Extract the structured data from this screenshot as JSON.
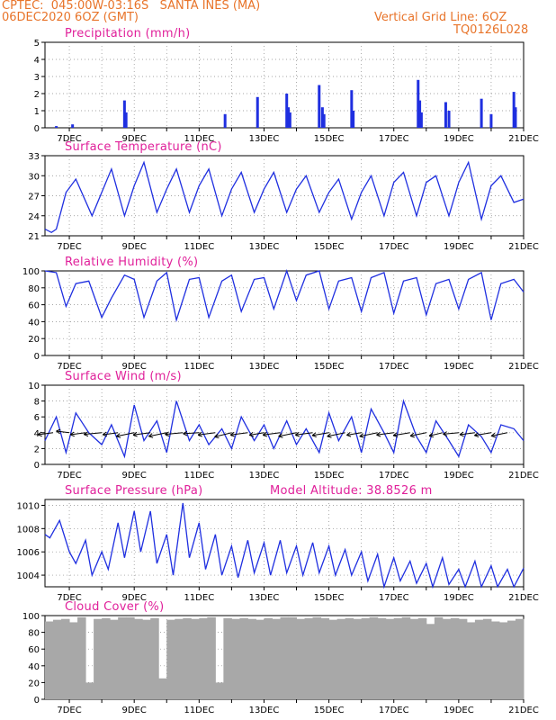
{
  "header": {
    "line1": "CPTEC:  045:00W-03:16S   SANTA INES (MA)",
    "line2": "06DEC2020 6OZ (GMT)",
    "grid_note": "Vertical Grid Line: 6OZ",
    "code": "TQ0126L028"
  },
  "x_ticks": [
    "7DEC",
    "9DEC",
    "11DEC",
    "13DEC",
    "15DEC",
    "17DEC",
    "19DEC",
    "21DEC"
  ],
  "model_altitude": "Model Altitude: 38.8526 m",
  "colors": {
    "series": "#1f2fe0",
    "title": "#e0209a",
    "header": "#e8742a",
    "cloud": "#a8a8a8",
    "wind_arrow": "#000000"
  },
  "chart_data": [
    {
      "type": "bar",
      "title": "Precipitation (mm/h)",
      "ylim": [
        0,
        5
      ],
      "yticks": [
        "0",
        "1",
        "2",
        "3",
        "4",
        "5"
      ],
      "x_range_days": [
        6.25,
        21.0
      ],
      "x": [
        6.6,
        7.1,
        8.7,
        8.75,
        11.8,
        12.8,
        13.7,
        13.75,
        13.8,
        14.7,
        14.8,
        14.85,
        15.7,
        15.75,
        17.75,
        17.8,
        17.85,
        18.6,
        18.7,
        19.7,
        20.0,
        20.7,
        20.75
      ],
      "values": [
        0.1,
        0.2,
        1.6,
        0.9,
        0.8,
        1.8,
        2.0,
        1.2,
        0.9,
        2.5,
        1.2,
        0.8,
        2.2,
        1.0,
        2.8,
        1.6,
        0.9,
        1.5,
        1.0,
        1.7,
        0.8,
        2.1,
        1.2
      ]
    },
    {
      "type": "line",
      "title": "Surface Temperature (nC)",
      "ylim": [
        21,
        33
      ],
      "yticks": [
        "21",
        "24",
        "27",
        "30",
        "33"
      ],
      "x_range_days": [
        6.25,
        21.0
      ],
      "x": [
        6.25,
        6.45,
        6.6,
        6.9,
        7.2,
        7.7,
        8.0,
        8.3,
        8.7,
        9.0,
        9.3,
        9.7,
        10.0,
        10.3,
        10.7,
        11.0,
        11.3,
        11.7,
        12.0,
        12.3,
        12.7,
        13.0,
        13.3,
        13.7,
        14.0,
        14.3,
        14.7,
        15.0,
        15.3,
        15.7,
        16.0,
        16.3,
        16.7,
        17.0,
        17.3,
        17.7,
        18.0,
        18.3,
        18.7,
        19.0,
        19.3,
        19.7,
        20.0,
        20.3,
        20.7,
        21.0
      ],
      "values": [
        22.0,
        21.5,
        22.0,
        27.5,
        29.5,
        24.0,
        27.5,
        31.0,
        24.0,
        28.5,
        32.0,
        24.5,
        28.0,
        31.0,
        24.5,
        28.5,
        31.0,
        24.0,
        28.0,
        30.5,
        24.5,
        28.0,
        30.5,
        24.5,
        28.0,
        30.0,
        24.5,
        27.5,
        29.5,
        23.5,
        27.5,
        30.0,
        24.0,
        29.0,
        30.5,
        24.0,
        29.0,
        30.0,
        24.0,
        29.0,
        32.0,
        23.5,
        28.5,
        30.0,
        26.0,
        26.5
      ]
    },
    {
      "type": "line",
      "title": "Relative Humidity (%)",
      "ylim": [
        0,
        100
      ],
      "yticks": [
        "0",
        "20",
        "40",
        "60",
        "80",
        "100"
      ],
      "x_range_days": [
        6.25,
        21.0
      ],
      "x": [
        6.25,
        6.6,
        6.9,
        7.2,
        7.6,
        8.0,
        8.3,
        8.7,
        9.0,
        9.3,
        9.7,
        10.0,
        10.3,
        10.7,
        11.0,
        11.3,
        11.7,
        12.0,
        12.3,
        12.7,
        13.0,
        13.3,
        13.7,
        14.0,
        14.3,
        14.7,
        15.0,
        15.3,
        15.7,
        16.0,
        16.3,
        16.7,
        17.0,
        17.3,
        17.7,
        18.0,
        18.3,
        18.7,
        19.0,
        19.3,
        19.7,
        20.0,
        20.3,
        20.7,
        21.0
      ],
      "values": [
        100,
        98,
        58,
        85,
        88,
        45,
        68,
        95,
        90,
        45,
        88,
        98,
        42,
        90,
        92,
        45,
        88,
        95,
        52,
        90,
        92,
        55,
        100,
        65,
        95,
        100,
        55,
        88,
        92,
        52,
        92,
        98,
        50,
        88,
        92,
        48,
        85,
        90,
        55,
        90,
        98,
        42,
        85,
        90,
        75
      ]
    },
    {
      "type": "line",
      "title": "Surface Wind (m/s)",
      "ylim": [
        0,
        10
      ],
      "yticks": [
        "0",
        "2",
        "4",
        "6",
        "8",
        "10"
      ],
      "x_range_days": [
        6.25,
        21.0
      ],
      "x": [
        6.25,
        6.6,
        6.9,
        7.2,
        7.6,
        8.0,
        8.3,
        8.7,
        9.0,
        9.3,
        9.7,
        10.0,
        10.3,
        10.7,
        11.0,
        11.3,
        11.7,
        12.0,
        12.3,
        12.7,
        13.0,
        13.3,
        13.7,
        14.0,
        14.3,
        14.7,
        15.0,
        15.3,
        15.7,
        16.0,
        16.3,
        16.7,
        17.0,
        17.3,
        17.7,
        18.0,
        18.3,
        18.7,
        19.0,
        19.3,
        19.7,
        20.0,
        20.3,
        20.7,
        21.0
      ],
      "values": [
        3.0,
        6.0,
        1.5,
        6.5,
        4.0,
        2.5,
        5.0,
        1.0,
        7.5,
        3.0,
        5.5,
        1.5,
        8.0,
        3.0,
        5.0,
        2.5,
        4.5,
        2.0,
        6.0,
        3.0,
        5.0,
        2.0,
        5.5,
        2.5,
        4.5,
        1.5,
        6.5,
        3.0,
        6.0,
        1.5,
        7.0,
        4.0,
        1.5,
        8.0,
        3.5,
        1.5,
        5.5,
        3.0,
        1.0,
        5.0,
        3.5,
        1.5,
        5.0,
        4.5,
        3.0
      ]
    },
    {
      "type": "line",
      "title": "Surface Pressure (hPa)",
      "ylim": [
        1003,
        1010.5
      ],
      "yticks": [
        "1004",
        "1006",
        "1008",
        "1010"
      ],
      "x_range_days": [
        6.25,
        21.0
      ],
      "x": [
        6.25,
        6.4,
        6.7,
        7.0,
        7.2,
        7.5,
        7.7,
        8.0,
        8.2,
        8.5,
        8.7,
        9.0,
        9.2,
        9.5,
        9.7,
        10.0,
        10.2,
        10.5,
        10.7,
        11.0,
        11.2,
        11.5,
        11.7,
        12.0,
        12.2,
        12.5,
        12.7,
        13.0,
        13.2,
        13.5,
        13.7,
        14.0,
        14.2,
        14.5,
        14.7,
        15.0,
        15.2,
        15.5,
        15.7,
        16.0,
        16.2,
        16.5,
        16.7,
        17.0,
        17.2,
        17.5,
        17.7,
        18.0,
        18.2,
        18.5,
        18.7,
        19.0,
        19.2,
        19.5,
        19.7,
        20.0,
        20.2,
        20.5,
        20.7,
        21.0
      ],
      "values": [
        1007.5,
        1007.2,
        1008.7,
        1006.0,
        1005.0,
        1007.0,
        1004.0,
        1006.0,
        1004.5,
        1008.5,
        1005.5,
        1009.5,
        1006.0,
        1009.5,
        1005.0,
        1007.5,
        1004.0,
        1010.2,
        1005.5,
        1008.5,
        1004.5,
        1007.5,
        1004.0,
        1006.5,
        1003.8,
        1007.0,
        1004.2,
        1006.8,
        1004.0,
        1007.0,
        1004.2,
        1006.5,
        1004.0,
        1006.8,
        1004.2,
        1006.5,
        1004.0,
        1006.2,
        1004.0,
        1006.0,
        1003.5,
        1005.8,
        1003.0,
        1005.5,
        1003.5,
        1005.2,
        1003.3,
        1005.0,
        1003.0,
        1005.5,
        1003.2,
        1004.5,
        1003.0,
        1005.2,
        1003.0,
        1004.8,
        1003.0,
        1004.5,
        1003.0,
        1004.6
      ]
    },
    {
      "type": "bar",
      "title": "Cloud Cover (%)",
      "ylim": [
        0,
        100
      ],
      "yticks": [
        "0",
        "20",
        "40",
        "60",
        "80",
        "100"
      ],
      "x_range_days": [
        6.25,
        21.0
      ],
      "x": [
        6.25,
        6.5,
        6.75,
        7.0,
        7.25,
        7.5,
        7.75,
        8.0,
        8.25,
        8.5,
        8.75,
        9.0,
        9.25,
        9.5,
        9.75,
        10.0,
        10.25,
        10.5,
        10.75,
        11.0,
        11.25,
        11.5,
        11.75,
        12.0,
        12.25,
        12.5,
        12.75,
        13.0,
        13.25,
        13.5,
        13.75,
        14.0,
        14.25,
        14.5,
        14.75,
        15.0,
        15.25,
        15.5,
        15.75,
        16.0,
        16.25,
        16.5,
        16.75,
        17.0,
        17.25,
        17.5,
        17.75,
        18.0,
        18.25,
        18.5,
        18.75,
        19.0,
        19.25,
        19.5,
        19.75,
        20.0,
        20.25,
        20.5,
        20.75
      ],
      "values": [
        93,
        95,
        96,
        92,
        98,
        20,
        96,
        97,
        95,
        98,
        98,
        96,
        95,
        97,
        25,
        95,
        96,
        97,
        96,
        97,
        98,
        20,
        97,
        96,
        97,
        96,
        95,
        97,
        96,
        98,
        98,
        96,
        97,
        98,
        97,
        95,
        96,
        97,
        96,
        97,
        98,
        97,
        96,
        97,
        98,
        96,
        97,
        90,
        98,
        96,
        97,
        96,
        92,
        95,
        96,
        93,
        92,
        94,
        96
      ]
    }
  ],
  "wind_arrows": {
    "x": [
      6.5,
      7.0,
      7.5,
      8.0,
      8.5,
      9.0,
      9.5,
      10.0,
      10.5,
      11.0,
      11.5,
      12.0,
      12.5,
      13.0,
      13.5,
      14.0,
      14.5,
      15.0,
      15.5,
      16.0,
      16.5,
      17.0,
      17.5,
      18.0,
      18.5,
      19.0,
      19.5,
      20.0,
      20.5
    ],
    "direction_deg": [
      70,
      110,
      70,
      75,
      70,
      60,
      70,
      60,
      75,
      80,
      70,
      55,
      70,
      65,
      70,
      60,
      70,
      65,
      60,
      65,
      60,
      70,
      65,
      60,
      55,
      75,
      70,
      65,
      60
    ],
    "speed": [
      4,
      3,
      4,
      5,
      4,
      6,
      5,
      6,
      5,
      4,
      5,
      6,
      5,
      4,
      5,
      6,
      5,
      5,
      6,
      4,
      6,
      5,
      5,
      5,
      4,
      4,
      4,
      5,
      5
    ]
  }
}
